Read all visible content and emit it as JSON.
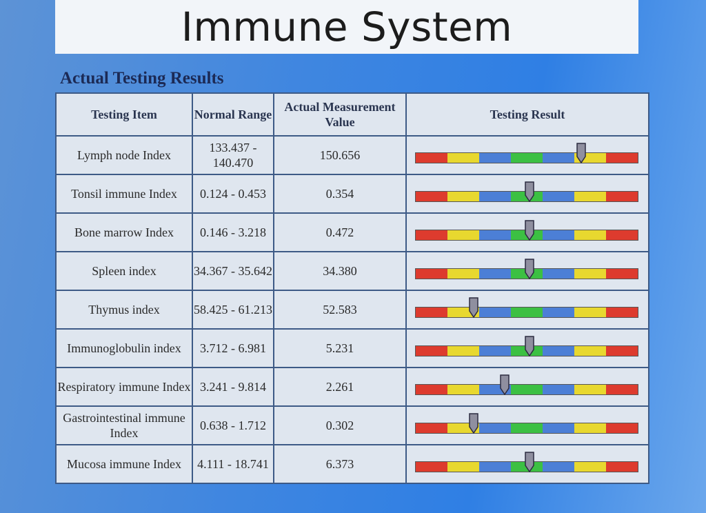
{
  "title": "Immune System",
  "section_label": "Actual Testing Results",
  "table": {
    "headers": {
      "item": "Testing Item",
      "range": "Normal Range",
      "value": "Actual Measurement Value",
      "result": "Testing Result"
    },
    "scale_colors": [
      "#dd3b2e",
      "#e8d82f",
      "#4c7fd6",
      "#3cc043",
      "#4c7fd6",
      "#e8d82f",
      "#dd3b2e"
    ],
    "marker_color": "#8f8f9f",
    "rows": [
      {
        "item": "Lymph node Index",
        "range": "133.437 - 140.470",
        "value": "150.656",
        "level": 0.74
      },
      {
        "item": "Tonsil immune Index",
        "range": "0.124 - 0.453",
        "value": "0.354",
        "level": 0.51
      },
      {
        "item": "Bone marrow Index",
        "range": "0.146 - 3.218",
        "value": "0.472",
        "level": 0.51
      },
      {
        "item": "Spleen index",
        "range": "34.367 - 35.642",
        "value": "34.380",
        "level": 0.51
      },
      {
        "item": "Thymus index",
        "range": "58.425 - 61.213",
        "value": "52.583",
        "level": 0.26
      },
      {
        "item": "Immunoglobulin index",
        "range": "3.712 - 6.981",
        "value": "5.231",
        "level": 0.51
      },
      {
        "item": "Respiratory immune Index",
        "range": "3.241 - 9.814",
        "value": "2.261",
        "level": 0.4
      },
      {
        "item": "Gastrointestinal immune Index",
        "range": "0.638 - 1.712",
        "value": "0.302",
        "level": 0.26
      },
      {
        "item": "Mucosa immune Index",
        "range": "4.111 - 18.741",
        "value": "6.373",
        "level": 0.51
      }
    ]
  }
}
